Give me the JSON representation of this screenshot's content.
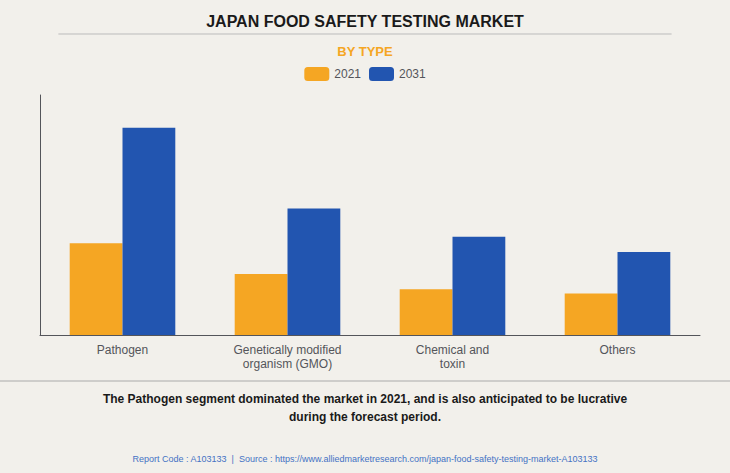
{
  "chart_data": {
    "type": "bar",
    "title": "JAPAN FOOD SAFETY TESTING MARKET",
    "subtitle": "BY TYPE",
    "categories": [
      "Pathogen",
      "Genetically modified\norganism (GMO)",
      "Chemical and\ntoxin",
      "Others"
    ],
    "series": [
      {
        "name": "2021",
        "color": "#F5A623",
        "values": [
          4.2,
          2.8,
          2.1,
          1.9
        ]
      },
      {
        "name": "2031",
        "color": "#2255B0",
        "values": [
          9.5,
          5.8,
          4.5,
          3.8
        ]
      }
    ],
    "ylim": [
      0,
      11
    ],
    "yticks": [],
    "grid": false,
    "tick_labels": "x",
    "legend": "top",
    "annotations": [
      "The Pathogen segment dominated the market in 2021, and is also anticipated to be lucrative\nduring the forecast period.",
      "Report Code : A103133  |  Source : https://www.alliedmarketresearch.com/japan-food-safety-testing-market-A103133"
    ]
  }
}
